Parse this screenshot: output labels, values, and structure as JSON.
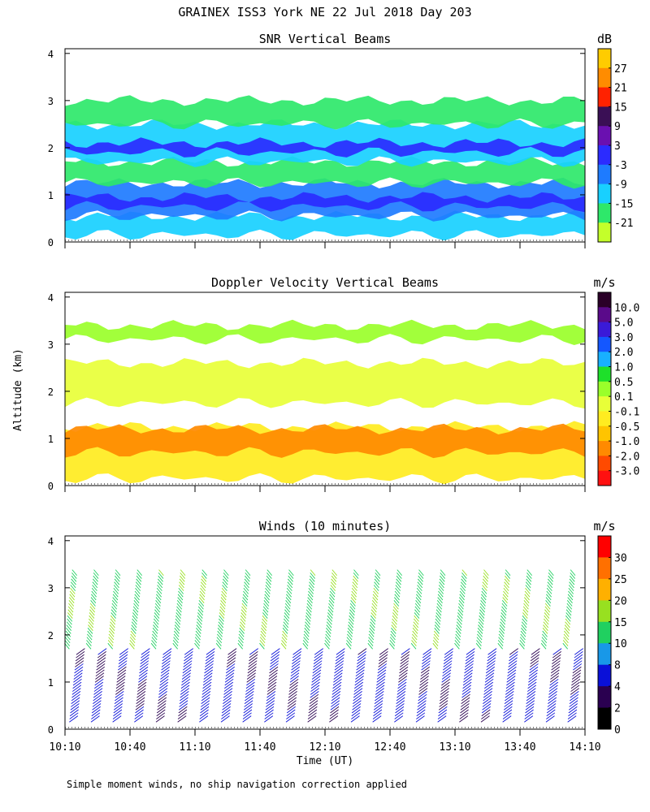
{
  "figure": {
    "title": "GRAINEX ISS3 York NE  22 Jul 2018 Day 203",
    "ylabel": "Altitude (km)",
    "xlabel": "Time (UT)",
    "footnote": "Simple moment winds, no ship navigation correction applied"
  },
  "chart_data": [
    {
      "type": "heatmap",
      "title": "SNR Vertical Beams",
      "unit": "dB",
      "ylim": [
        0,
        4.1
      ],
      "yticks": [
        "0",
        "1",
        "2",
        "3",
        "4"
      ],
      "xlim": [
        "10:10",
        "14:10"
      ],
      "colorbar": {
        "labels": [
          "27",
          "21",
          "15",
          "9",
          "3",
          "-3",
          "-9",
          "-15",
          "-21"
        ],
        "colors": [
          "#ffcc00",
          "#ff8c00",
          "#ff2200",
          "#3a0f55",
          "#6a10b0",
          "#2b2bff",
          "#1e7bff",
          "#18d0ff",
          "#2ee86a",
          "#c4ff2a"
        ]
      },
      "layers": [
        {
          "altitude_km": [
            0.15,
            0.55
          ],
          "level_db": -12
        },
        {
          "altitude_km": [
            0.55,
            1.25
          ],
          "level_db": -6
        },
        {
          "altitude_km": [
            0.75,
            0.95
          ],
          "level_db": 3
        },
        {
          "altitude_km": [
            1.25,
            1.7
          ],
          "level_db": -18
        },
        {
          "altitude_km": [
            1.7,
            2.5
          ],
          "level_db": -9
        },
        {
          "altitude_km": [
            1.9,
            2.1
          ],
          "level_db": 0
        },
        {
          "altitude_km": [
            2.5,
            3.0
          ],
          "level_db": -18
        }
      ]
    },
    {
      "type": "heatmap",
      "title": "Doppler Velocity Vertical Beams",
      "unit": "m/s",
      "ylim": [
        0,
        4.1
      ],
      "yticks": [
        "0",
        "1",
        "2",
        "3",
        "4"
      ],
      "xlim": [
        "10:10",
        "14:10"
      ],
      "colorbar": {
        "labels": [
          "10.0",
          "5.0",
          "3.0",
          "2.0",
          "1.0",
          "0.5",
          "0.1",
          "-0.1",
          "-0.5",
          "-1.0",
          "-2.0",
          "-3.0"
        ],
        "colors": [
          "#2a0028",
          "#5a0a8a",
          "#3a1ad8",
          "#1457ff",
          "#18b0ff",
          "#1ee02a",
          "#9aff2a",
          "#e8ff38",
          "#ffec20",
          "#ffc400",
          "#ff8a00",
          "#ff4a00",
          "#ff1010"
        ]
      },
      "layers": [
        {
          "altitude_km": [
            0.15,
            1.25
          ],
          "velocity_ms": -0.3
        },
        {
          "altitude_km": [
            0.7,
            1.2
          ],
          "velocity_ms": -1.5
        },
        {
          "altitude_km": [
            1.75,
            2.6
          ],
          "velocity_ms": 0.1
        },
        {
          "altitude_km": [
            3.1,
            3.4
          ],
          "velocity_ms": 0.5
        }
      ]
    },
    {
      "type": "scatter",
      "title": "Winds (10 minutes)",
      "unit": "m/s",
      "ylim": [
        0,
        4.1
      ],
      "yticks": [
        "0",
        "1",
        "2",
        "3",
        "4"
      ],
      "xticks": [
        "10:10",
        "10:40",
        "11:10",
        "11:40",
        "12:10",
        "12:40",
        "13:10",
        "13:40",
        "14:10"
      ],
      "colorbar": {
        "labels": [
          "30",
          "25",
          "20",
          "15",
          "10",
          "8",
          "4",
          "2",
          "0"
        ],
        "colors": [
          "#ff0000",
          "#ff7000",
          "#ffb000",
          "#98e020",
          "#20d060",
          "#1898e8",
          "#0a10d8",
          "#2a0050",
          "#000000"
        ]
      },
      "profile_times": [
        "10:12",
        "10:22",
        "10:32",
        "10:42",
        "10:52",
        "11:02",
        "11:12",
        "11:22",
        "11:32",
        "11:42",
        "11:52",
        "12:02",
        "12:12",
        "12:22",
        "12:32",
        "12:42",
        "12:52",
        "13:02",
        "13:12",
        "13:22",
        "13:32",
        "13:42",
        "13:52",
        "14:02"
      ],
      "low_level": {
        "altitude_km": [
          0.15,
          1.6
        ],
        "speed_ms": 5,
        "direction": "southerly"
      },
      "upper_level": {
        "altitude_km": [
          1.7,
          3.3
        ],
        "speed_ms": 14,
        "direction": "westerly"
      }
    }
  ]
}
